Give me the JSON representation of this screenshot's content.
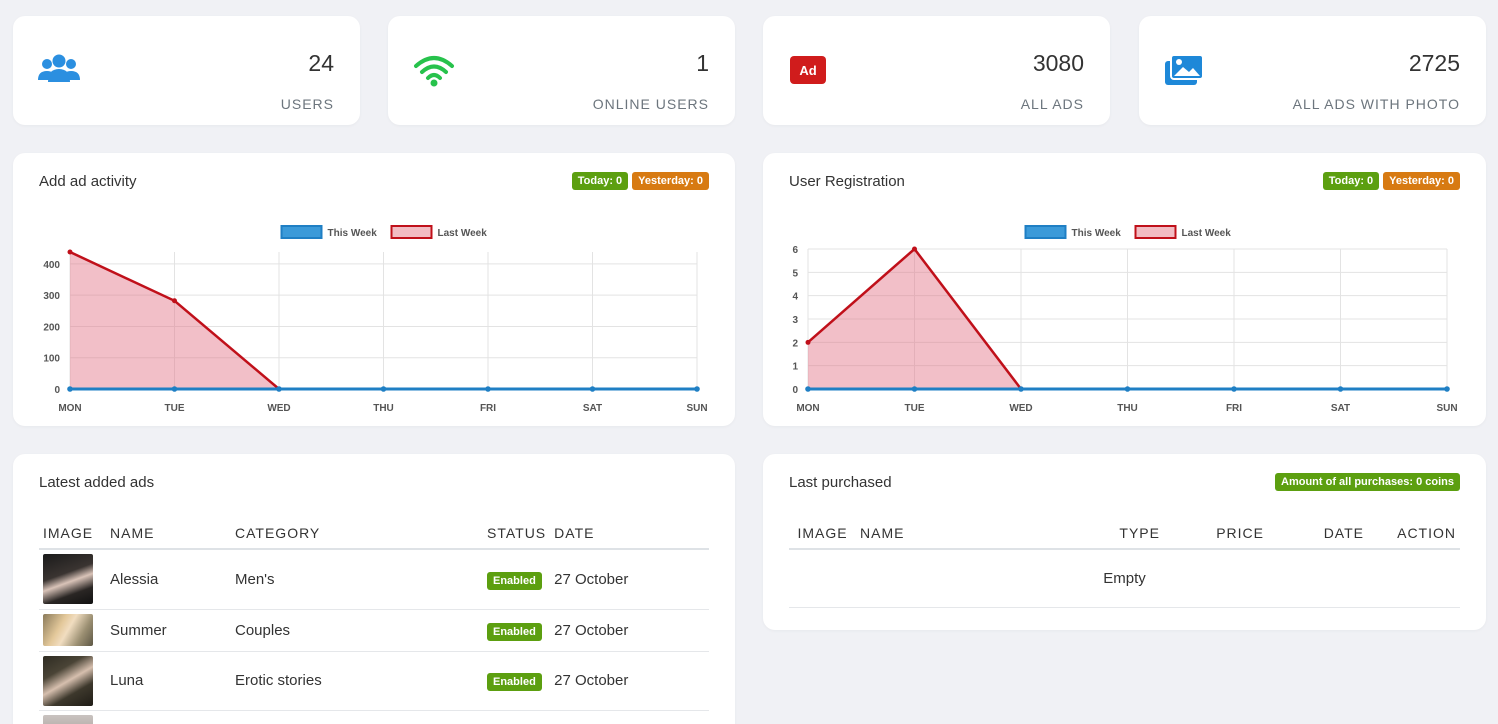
{
  "stats": [
    {
      "value": "24",
      "label": "USERS",
      "icon": "users-icon",
      "color": "#2b8fe0"
    },
    {
      "value": "1",
      "label": "ONLINE USERS",
      "icon": "wifi-icon",
      "color": "#27c24c"
    },
    {
      "value": "3080",
      "label": "ALL ADS",
      "icon": "ad-icon",
      "color": "#d01c1c"
    },
    {
      "value": "2725",
      "label": "ALL ADS WITH PHOTO",
      "icon": "photos-icon",
      "color": "#1e88d8"
    }
  ],
  "ad_activity": {
    "title": "Add ad activity",
    "today": "Today: 0",
    "yesterday": "Yesterday: 0"
  },
  "user_registration": {
    "title": "User Registration",
    "today": "Today: 0",
    "yesterday": "Yesterday: 0"
  },
  "chart_data": [
    {
      "type": "area",
      "x": [
        "MON",
        "TUE",
        "WED",
        "THU",
        "FRI",
        "SAT",
        "SUN"
      ],
      "series": [
        {
          "name": "This Week",
          "values": [
            0,
            0,
            0,
            0,
            0,
            0,
            0
          ],
          "color": "#1f7fc4"
        },
        {
          "name": "Last Week",
          "values": [
            438,
            282,
            0,
            null,
            null,
            null,
            null
          ],
          "color": "#c0101a"
        }
      ],
      "yticks": [
        "0",
        "100",
        "200",
        "300",
        "400"
      ],
      "ylim": [
        0,
        438
      ],
      "grid": true,
      "legend": "top"
    },
    {
      "type": "area",
      "x": [
        "MON",
        "TUE",
        "WED",
        "THU",
        "FRI",
        "SAT",
        "SUN"
      ],
      "series": [
        {
          "name": "This Week",
          "values": [
            0,
            0,
            0,
            0,
            0,
            0,
            0
          ],
          "color": "#1f7fc4"
        },
        {
          "name": "Last Week",
          "values": [
            2,
            6,
            0,
            null,
            null,
            null,
            null
          ],
          "color": "#c0101a"
        }
      ],
      "yticks": [
        "0",
        "1",
        "2",
        "3",
        "4",
        "5",
        "6"
      ],
      "ylim": [
        0,
        6
      ],
      "grid": true,
      "legend": "top"
    }
  ],
  "latest_ads": {
    "title": "Latest added ads",
    "columns": [
      "IMAGE",
      "NAME",
      "CATEGORY",
      "STATUS",
      "DATE"
    ],
    "rows": [
      {
        "name": "Alessia",
        "category": "Men's",
        "status": "Enabled",
        "date": "27 October"
      },
      {
        "name": "Summer",
        "category": "Couples",
        "status": "Enabled",
        "date": "27 October"
      },
      {
        "name": "Luna",
        "category": "Erotic stories",
        "status": "Enabled",
        "date": "27 October"
      }
    ]
  },
  "last_purchased": {
    "title": "Last purchased",
    "badge": "Amount of all purchases: 0 coins",
    "columns": [
      "IMAGE",
      "NAME",
      "TYPE",
      "PRICE",
      "DATE",
      "ACTION"
    ],
    "empty": "Empty"
  }
}
